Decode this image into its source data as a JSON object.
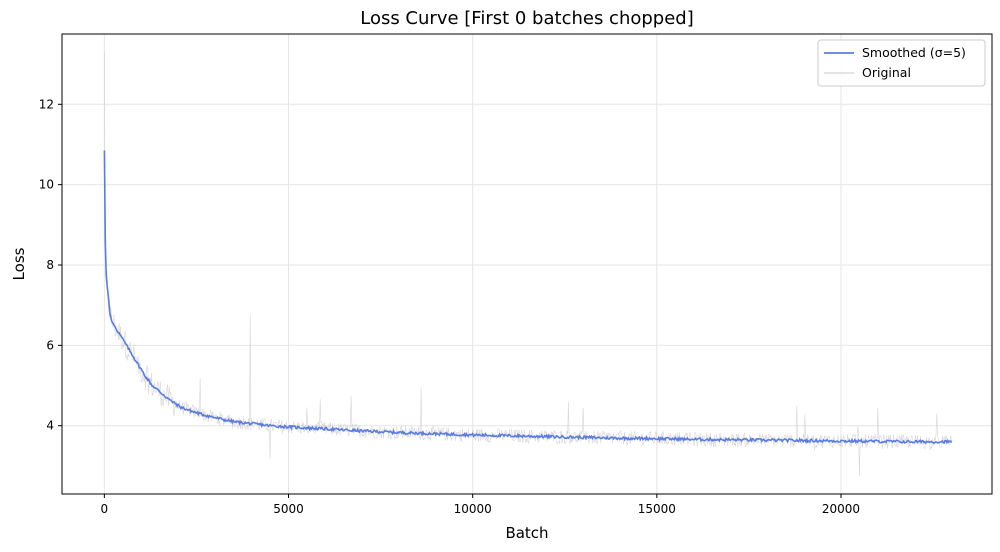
{
  "chart_data": {
    "type": "line",
    "title": "Loss Curve [First 0 batches chopped]",
    "xlabel": "Batch",
    "ylabel": "Loss",
    "xlim": [
      -1150,
      24100
    ],
    "ylim": [
      2.3,
      13.75
    ],
    "xticks": [
      0,
      5000,
      10000,
      15000,
      20000
    ],
    "yticks": [
      4,
      6,
      8,
      10,
      12
    ],
    "grid": true,
    "legend_position": "top-right",
    "colors": {
      "smoothed": "#5b7be0",
      "original": "#c8c8c8",
      "grid": "#e6e6e6"
    },
    "series": [
      {
        "name": "Smoothed (σ=5)",
        "x": [
          0,
          30,
          60,
          100,
          150,
          200,
          300,
          400,
          500,
          700,
          900,
          1100,
          1300,
          1500,
          1800,
          2100,
          2500,
          3000,
          3500,
          4000,
          4500,
          5000,
          6000,
          7000,
          8000,
          9000,
          10000,
          11000,
          12000,
          13000,
          14000,
          15000,
          16000,
          17000,
          18000,
          19000,
          20000,
          21000,
          22000,
          23000
        ],
        "values": [
          10.85,
          8.1,
          7.6,
          7.3,
          6.8,
          6.6,
          6.45,
          6.3,
          6.15,
          5.85,
          5.55,
          5.25,
          5.0,
          4.85,
          4.62,
          4.45,
          4.32,
          4.2,
          4.1,
          4.05,
          4.0,
          3.97,
          3.92,
          3.87,
          3.83,
          3.8,
          3.77,
          3.75,
          3.73,
          3.71,
          3.69,
          3.68,
          3.66,
          3.65,
          3.64,
          3.63,
          3.62,
          3.61,
          3.6,
          3.6
        ]
      },
      {
        "name": "Original",
        "noise": "high-frequency raw loss around the smoothed curve",
        "spikes": [
          {
            "x": 0,
            "value": 13.3
          },
          {
            "x": 3950,
            "value": 6.75
          },
          {
            "x": 2600,
            "value": 5.2
          },
          {
            "x": 6700,
            "value": 4.75
          },
          {
            "x": 8600,
            "value": 4.95
          },
          {
            "x": 12600,
            "value": 4.6
          },
          {
            "x": 18800,
            "value": 4.5
          },
          {
            "x": 21000,
            "value": 4.45
          },
          {
            "x": 22600,
            "value": 4.3
          },
          {
            "x": 4500,
            "value": 3.2
          },
          {
            "x": 20500,
            "value": 2.75
          }
        ]
      }
    ]
  }
}
